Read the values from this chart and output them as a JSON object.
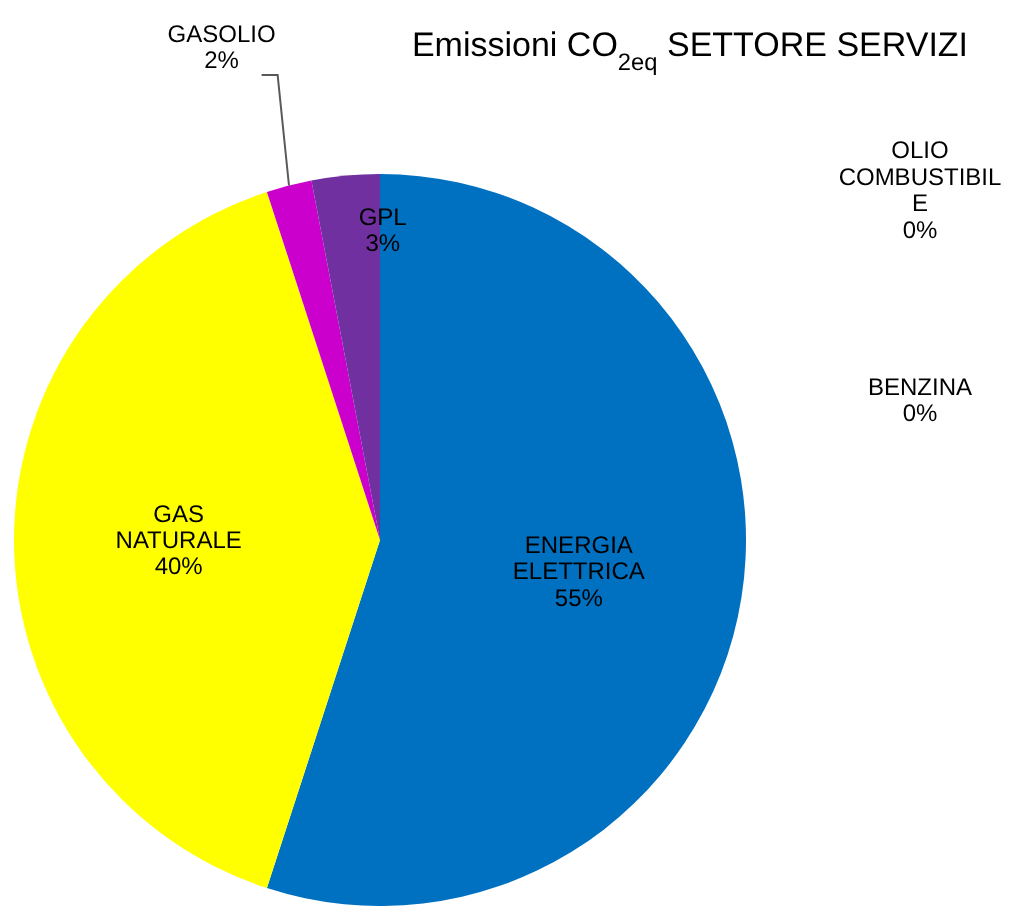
{
  "chart_data": {
    "type": "pie",
    "title": "Emissioni CO$_{2eq}$ SETTORE SERVIZI",
    "categories": [
      "ENERGIA ELETTRICA",
      "GAS NATURALE",
      "GASOLIO",
      "GPL",
      "OLIO COMBUSTIBILE",
      "BENZINA"
    ],
    "values": [
      55,
      40,
      2,
      3,
      0,
      0
    ],
    "colors": [
      "#0070c0",
      "#ffff00",
      "#cc00cc",
      "#7030a0",
      null,
      null
    ],
    "value_labels": [
      "55%",
      "40%",
      "2%",
      "3%",
      "0%",
      "0%"
    ]
  }
}
